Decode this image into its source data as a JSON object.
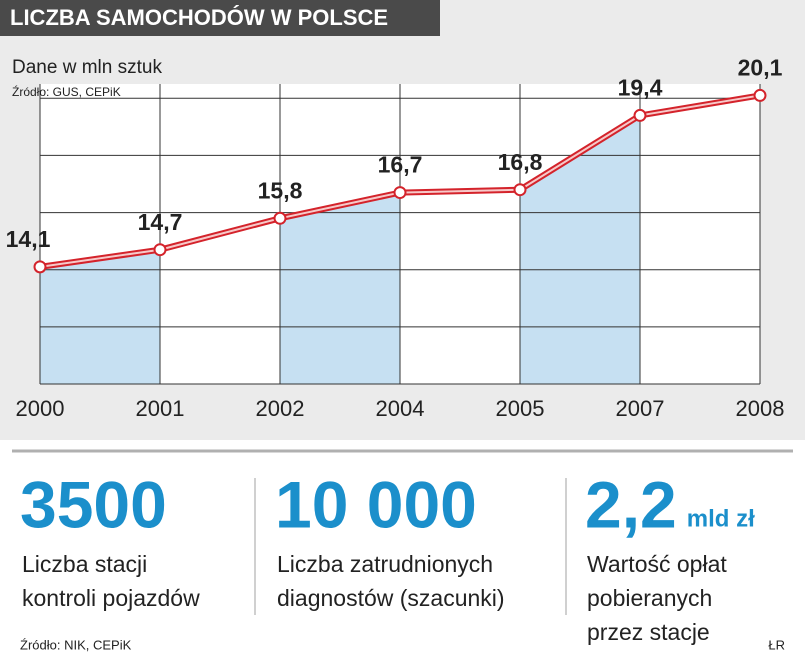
{
  "chart_data": {
    "type": "line",
    "title": "LICZBA SAMOCHODÓW W POLSCE",
    "subtitle": "Dane w mln sztuk",
    "source": "Źródło:  GUS, CEPiK",
    "categories": [
      "2000",
      "2001",
      "2002",
      "2004",
      "2005",
      "2007",
      "2008"
    ],
    "values": [
      14.1,
      14.7,
      15.8,
      16.7,
      16.8,
      19.4,
      20.1
    ],
    "value_labels": [
      "14,1",
      "14,7",
      "15,8",
      "16,7",
      "16,8",
      "19,4",
      "20,1"
    ],
    "color": "#d4232b",
    "fill_color": "#c6e0f2",
    "ylim": [
      10,
      20.5
    ],
    "yticks": [
      10,
      12,
      14,
      16,
      18,
      20
    ],
    "grid": true
  },
  "stats": [
    {
      "value": "3500",
      "lines": [
        "Liczba stacji",
        "kontroli pojazdów"
      ]
    },
    {
      "value": "10 000",
      "lines": [
        "Liczba zatrudnionych",
        "diagnostów (szacunki)"
      ]
    },
    {
      "value": "2,2",
      "unit": "mld zł",
      "lines": [
        "Wartość opłat",
        "pobieranych",
        "przez stacje"
      ]
    }
  ],
  "footer": {
    "source": "Źródło: NIK, CEPiK",
    "author": "ŁR"
  }
}
